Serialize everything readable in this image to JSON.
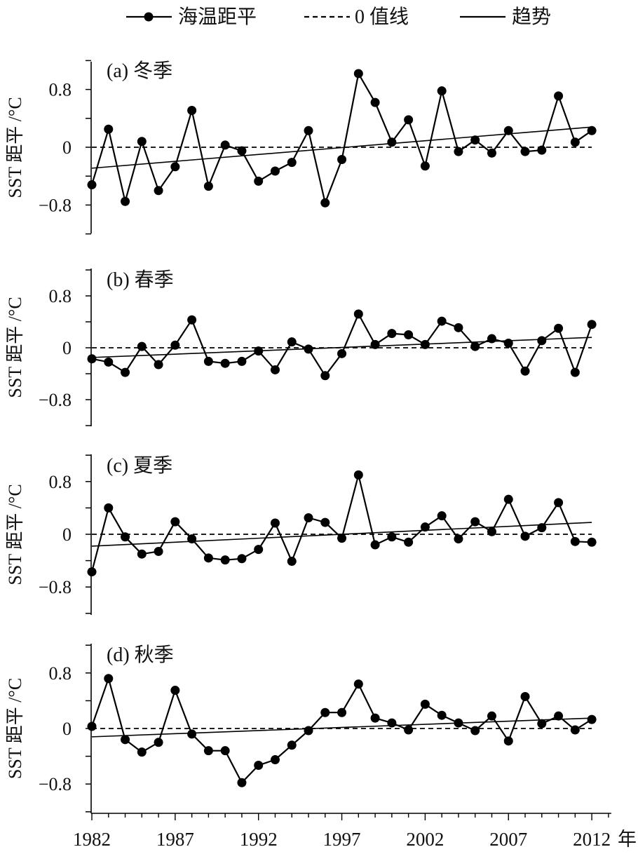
{
  "legend": {
    "anomaly_label": "海温距平",
    "zero_label": "0 值线",
    "trend_label": "趋势"
  },
  "x_axis": {
    "start_year": 1982,
    "end_year": 2013,
    "ticks": [
      {
        "value": 1982,
        "label": "1982"
      },
      {
        "value": 1987,
        "label": "1987"
      },
      {
        "value": 1992,
        "label": "1992"
      },
      {
        "value": 1997,
        "label": "1997"
      },
      {
        "value": 2002,
        "label": "2002"
      },
      {
        "value": 2007,
        "label": "2007"
      },
      {
        "value": 2012,
        "label": "2012"
      }
    ],
    "unit": "年"
  },
  "chart_data": [
    {
      "type": "line",
      "title": "(a) 冬季",
      "ylabel": "SST 距平 /°C",
      "ylim": [
        -1.2,
        1.2
      ],
      "yticks": [
        {
          "value": 0.8,
          "label": "0.8"
        },
        {
          "value": 0,
          "label": "0"
        },
        {
          "value": -0.8,
          "label": "−0.8"
        }
      ],
      "x_start": 1982,
      "values": [
        -0.52,
        0.25,
        -0.75,
        0.08,
        -0.6,
        -0.27,
        0.51,
        -0.54,
        0.03,
        -0.05,
        -0.47,
        -0.33,
        -0.21,
        0.23,
        -0.77,
        -0.17,
        1.02,
        0.62,
        0.07,
        0.38,
        -0.26,
        0.78,
        -0.06,
        0.1,
        -0.08,
        0.23,
        -0.06,
        -0.04,
        0.71,
        0.07,
        0.23
      ],
      "trend": [
        -0.29,
        0.28
      ]
    },
    {
      "type": "line",
      "title": "(b) 春季",
      "ylabel": "SST 距平 /°C",
      "ylim": [
        -1.2,
        1.2
      ],
      "yticks": [
        {
          "value": 0.8,
          "label": "0.8"
        },
        {
          "value": 0,
          "label": "0"
        },
        {
          "value": -0.8,
          "label": "−0.8"
        }
      ],
      "x_start": 1982,
      "values": [
        -0.17,
        -0.22,
        -0.38,
        0.02,
        -0.26,
        0.04,
        0.43,
        -0.21,
        -0.24,
        -0.21,
        -0.05,
        -0.34,
        0.09,
        -0.02,
        -0.43,
        -0.09,
        0.52,
        0.05,
        0.22,
        0.2,
        0.05,
        0.41,
        0.31,
        0.02,
        0.14,
        0.07,
        -0.36,
        0.11,
        0.3,
        -0.38,
        0.36
      ],
      "trend": [
        -0.15,
        0.16
      ]
    },
    {
      "type": "line",
      "title": "(c) 夏季",
      "ylabel": "SST 距平 /°C",
      "ylim": [
        -1.2,
        1.2
      ],
      "yticks": [
        {
          "value": 0.8,
          "label": "0.8"
        },
        {
          "value": 0,
          "label": "0"
        },
        {
          "value": -0.8,
          "label": "−0.8"
        }
      ],
      "x_start": 1982,
      "values": [
        -0.57,
        0.4,
        -0.04,
        -0.3,
        -0.26,
        0.19,
        -0.07,
        -0.36,
        -0.39,
        -0.37,
        -0.23,
        0.17,
        -0.41,
        0.25,
        0.18,
        -0.06,
        0.9,
        -0.16,
        -0.04,
        -0.12,
        0.11,
        0.28,
        -0.07,
        0.19,
        0.04,
        0.53,
        -0.03,
        0.1,
        0.48,
        -0.11,
        -0.12
      ],
      "trend": [
        -0.18,
        0.18
      ]
    },
    {
      "type": "line",
      "title": "(d) 秋季",
      "ylabel": "SST 距平 /°C",
      "ylim": [
        -1.2,
        1.2
      ],
      "yticks": [
        {
          "value": 0.8,
          "label": "0.8"
        },
        {
          "value": 0,
          "label": "0"
        },
        {
          "value": -0.8,
          "label": "−0.8"
        }
      ],
      "x_start": 1982,
      "values": [
        0.03,
        0.72,
        -0.16,
        -0.34,
        -0.2,
        0.55,
        -0.08,
        -0.32,
        -0.32,
        -0.78,
        -0.53,
        -0.45,
        -0.24,
        -0.03,
        0.23,
        0.23,
        0.64,
        0.15,
        0.08,
        -0.02,
        0.35,
        0.19,
        0.08,
        -0.03,
        0.18,
        -0.18,
        0.46,
        0.07,
        0.18,
        -0.02,
        0.13
      ],
      "trend": [
        -0.12,
        0.15
      ]
    }
  ]
}
